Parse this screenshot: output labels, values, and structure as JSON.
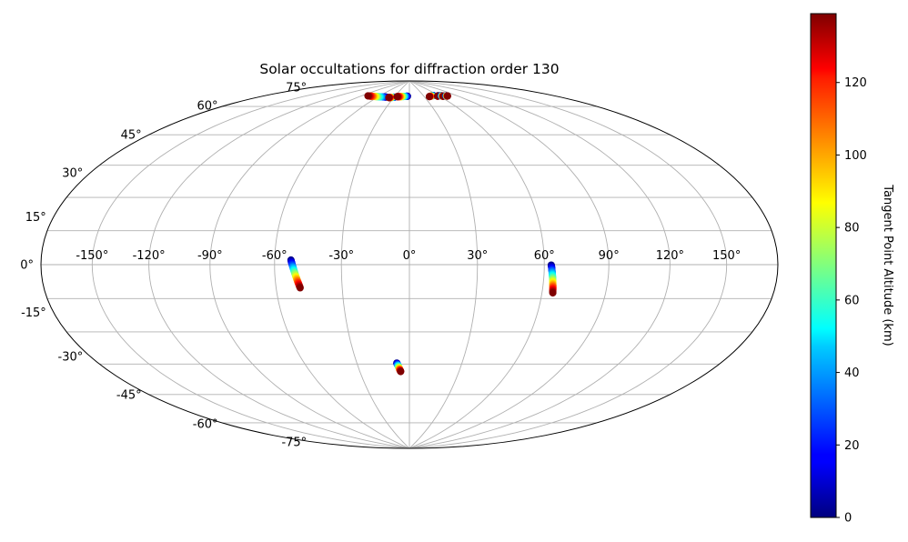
{
  "chart_data": {
    "type": "scatter",
    "projection": "hammer",
    "title": "Solar occultations for diffraction order 130",
    "lon_ticks": [
      "-150°",
      "-120°",
      "-90°",
      "-60°",
      "-30°",
      "0°",
      "30°",
      "60°",
      "90°",
      "120°",
      "150°"
    ],
    "lon_values": [
      -150,
      -120,
      -90,
      -60,
      -30,
      0,
      30,
      60,
      90,
      120,
      150
    ],
    "lat_ticks": [
      "75°",
      "60°",
      "45°",
      "30°",
      "15°",
      "0°",
      "-15°",
      "-30°",
      "-45°",
      "-60°",
      "-75°"
    ],
    "lat_values": [
      75,
      60,
      45,
      30,
      15,
      0,
      -15,
      -30,
      -45,
      -60,
      -75
    ],
    "grid": true,
    "colorbar": {
      "label": "Tangent Point Altitude (km)",
      "colormap": "jet",
      "range": [
        0,
        139
      ],
      "tick_labels": [
        "0",
        "20",
        "40",
        "60",
        "80",
        "100",
        "120"
      ],
      "tick_values": [
        0,
        20,
        40,
        60,
        80,
        100,
        120
      ]
    },
    "tracks": [
      {
        "lon_start": -52.6,
        "lat_start": 2.0,
        "lon_end": -49.0,
        "lat_end": -10.0
      },
      {
        "lon_start": -7.2,
        "lat_start": -44.5,
        "lon_end": -5.3,
        "lat_end": -48.6
      },
      {
        "lon_start": 63.2,
        "lat_start": -0.2,
        "lon_end": 65.0,
        "lat_end": -12.0
      },
      {
        "lon_start": -45.0,
        "lat_start": 79.8,
        "lon_end": -80.0,
        "lat_end": 79.2
      },
      {
        "lon_start": -30.0,
        "lat_start": 80.0,
        "lon_end": -39.0,
        "lat_end": 79.6
      },
      {
        "lon_start": -4.0,
        "lat_start": 80.8,
        "lon_end": -25.0,
        "lat_end": 80.4
      },
      {
        "lon_start": 50.0,
        "lat_start": 80.6,
        "lon_end": 40.0,
        "lat_end": 80.2
      },
      {
        "lon_start": 59.0,
        "lat_start": 80.2,
        "lon_end": 56.5,
        "lat_end": 80.0
      },
      {
        "lon_start": 64.0,
        "lat_start": 80.0,
        "lon_end": 66.0,
        "lat_end": 79.6
      },
      {
        "lon_start": 72.0,
        "lat_start": 79.6,
        "lon_end": 74.0,
        "lat_end": 79.4
      }
    ]
  }
}
